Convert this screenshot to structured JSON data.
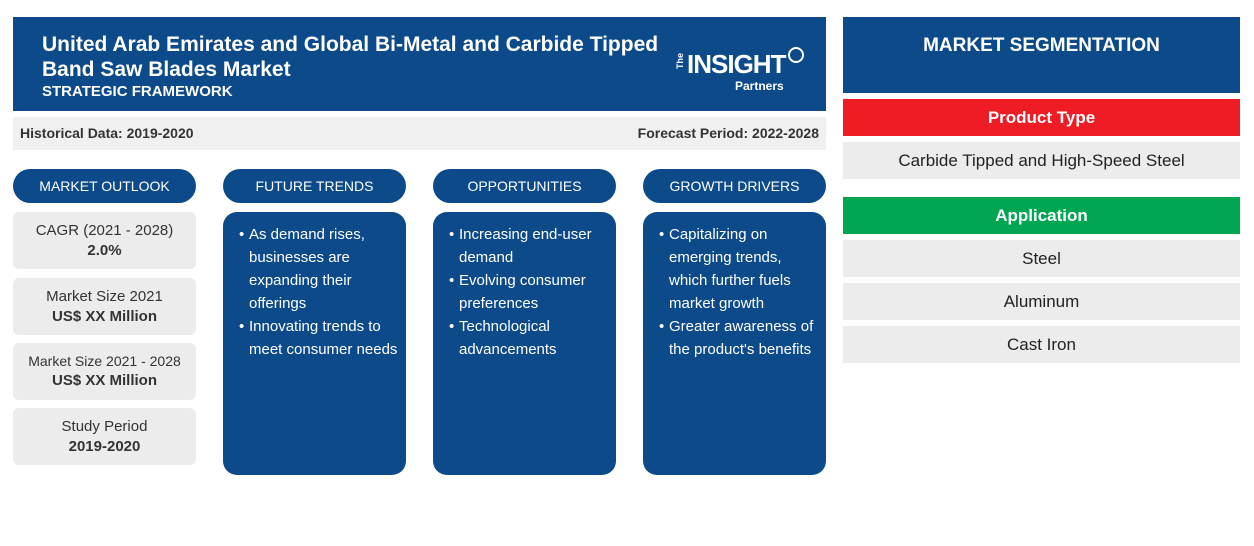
{
  "header": {
    "title": "United Arab Emirates and Global Bi-Metal and Carbide Tipped Band Saw Blades Market",
    "subtitle": "STRATEGIC FRAMEWORK",
    "logo": {
      "the": "The",
      "name": "INSIGHT",
      "partners": "Partners"
    }
  },
  "period": {
    "historical": "Historical Data: 2019-2020",
    "forecast": "Forecast Period: 2022-2028"
  },
  "columns": {
    "outlook": "MARKET OUTLOOK",
    "trends": "FUTURE TRENDS",
    "opportunities": "OPPORTUNITIES",
    "drivers": "GROWTH DRIVERS"
  },
  "outlook": [
    {
      "label": "CAGR (2021 - 2028)",
      "value": "2.0%"
    },
    {
      "label": "Market Size 2021",
      "value": "US$ XX Million"
    },
    {
      "label": "Market Size 2021 - 2028",
      "value": "US$ XX Million"
    },
    {
      "label": "Study Period",
      "value": "2019-2020"
    }
  ],
  "trends": [
    "As demand rises, businesses are expanding their offerings",
    "Innovating trends to meet consumer needs"
  ],
  "opportunities": [
    "Increasing end-user demand",
    "Evolving consumer preferences",
    "Technological advancements"
  ],
  "drivers": [
    "Capitalizing on emerging trends, which further fuels market growth",
    "Greater awareness of the product's benefits"
  ],
  "segmentation": {
    "title": "MARKET SEGMENTATION",
    "product_type": {
      "label": "Product Type",
      "color": "#ee1c25",
      "items": [
        "Carbide Tipped and High-Speed Steel"
      ]
    },
    "application": {
      "label": "Application",
      "color": "#00a651",
      "items": [
        "Steel",
        "Aluminum",
        "Cast Iron"
      ]
    }
  },
  "colors": {
    "primary": "#0c4a8a",
    "panel": "#ececec"
  }
}
